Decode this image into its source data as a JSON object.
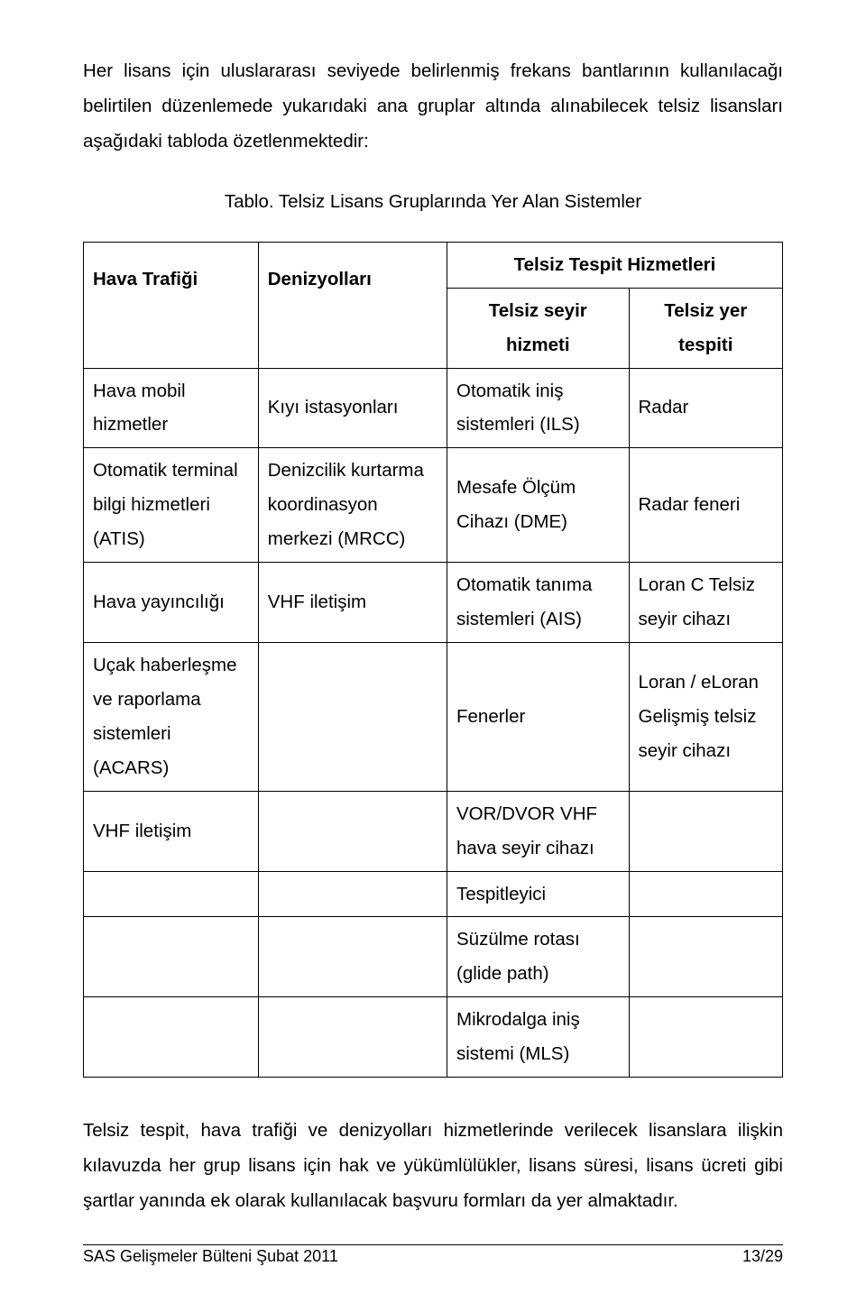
{
  "intro": "Her lisans için uluslararası seviyede belirlenmiş frekans bantlarının kullanılacağı belirtilen düzenlemede yukarıdaki ana gruplar altında alınabilecek telsiz lisansları aşağıdaki tabloda özetlenmektedir:",
  "table_caption": "Tablo. Telsiz Lisans Gruplarında Yer Alan Sistemler",
  "headers": {
    "col1": "Hava Trafiği",
    "col2": "Denizyolları",
    "col3_group": "Telsiz Tespit Hizmetleri",
    "col3a": "Telsiz seyir hizmeti",
    "col3b": "Telsiz yer tespiti"
  },
  "rows": [
    {
      "c1": "Hava mobil hizmetler",
      "c2": "Kıyı istasyonları",
      "c3": "Otomatik iniş sistemleri (ILS)",
      "c4": "Radar"
    },
    {
      "c1": "Otomatik terminal bilgi hizmetleri (ATIS)",
      "c2": "Denizcilik kurtarma koordinasyon merkezi (MRCC)",
      "c3": "Mesafe Ölçüm Cihazı (DME)",
      "c4": "Radar feneri"
    },
    {
      "c1": "Hava yayıncılığı",
      "c2": "VHF iletişim",
      "c3": "Otomatik tanıma sistemleri (AIS)",
      "c4": "Loran C Telsiz seyir cihazı"
    },
    {
      "c1": "Uçak haberleşme ve raporlama sistemleri (ACARS)",
      "c2": "",
      "c3": "Fenerler",
      "c4": "Loran / eLoran Gelişmiş telsiz seyir cihazı"
    },
    {
      "c1": "VHF iletişim",
      "c2": "",
      "c3": "VOR/DVOR VHF hava seyir cihazı",
      "c4": ""
    },
    {
      "c1": "",
      "c2": "",
      "c3": "Tespitleyici",
      "c4": ""
    },
    {
      "c1": "",
      "c2": "",
      "c3": "Süzülme rotası (glide path)",
      "c4": ""
    },
    {
      "c1": "",
      "c2": "",
      "c3": "Mikrodalga iniş sistemi (MLS)",
      "c4": ""
    }
  ],
  "outro": "Telsiz tespit, hava trafiği ve denizyolları hizmetlerinde verilecek lisanslara ilişkin kılavuzda her grup lisans için hak ve yükümlülükler, lisans süresi, lisans ücreti gibi şartlar yanında ek olarak kullanılacak başvuru formları da yer almaktadır.",
  "footer_left": "SAS Gelişmeler Bülteni Şubat 2011",
  "footer_right": "13/29",
  "col_widths": {
    "c1": "25%",
    "c2": "27%",
    "c3": "26%",
    "c4": "22%"
  }
}
